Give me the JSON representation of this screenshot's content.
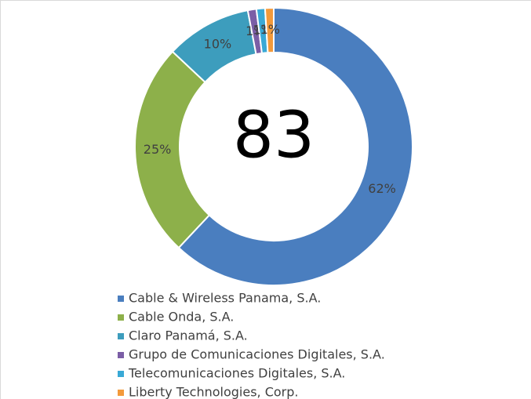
{
  "chart_data": {
    "type": "doughnut",
    "center_text": "83",
    "categories": [
      "Cable & Wireless Panama, S.A.",
      "Cable Onda, S.A.",
      "Claro Panamá, S.A.",
      "Grupo de Comunicaciones Digitales, S.A.",
      "Telecomunicaciones Digitales, S.A.",
      "Liberty Technologies, Corp."
    ],
    "values": [
      62,
      25,
      10,
      1,
      1,
      1
    ],
    "value_labels": [
      "62%",
      "25%",
      "10%",
      "1%",
      "1%",
      "1%"
    ],
    "colors": [
      "#4a7ebf",
      "#8db04a",
      "#3d9dbd",
      "#7b5ea6",
      "#39a9d6",
      "#f39a3b"
    ],
    "legend": "bottom"
  }
}
